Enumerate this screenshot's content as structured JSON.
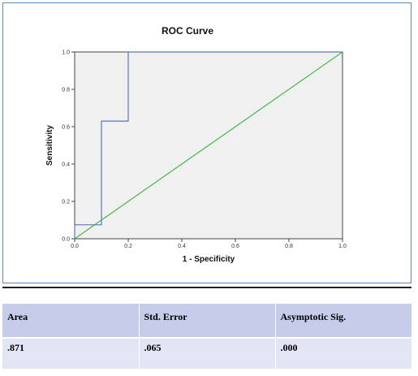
{
  "chart_data": {
    "type": "line",
    "title": "ROC Curve",
    "xlabel": "1 - Specificity",
    "ylabel": "Sensitivity",
    "xlim": [
      0.0,
      1.0
    ],
    "ylim": [
      0.0,
      1.0
    ],
    "xticks": [
      "0.0",
      "0.2",
      "0.4",
      "0.6",
      "0.8",
      "1.0"
    ],
    "yticks": [
      "0.0",
      "0.2",
      "0.4",
      "0.6",
      "0.8",
      "1.0"
    ],
    "grid": false,
    "plot_background": "#f0f0f0",
    "series": [
      {
        "color": "#5a78b8",
        "points": [
          [
            0.0,
            0.0
          ],
          [
            0.0,
            0.075
          ],
          [
            0.1,
            0.075
          ],
          [
            0.1,
            0.63
          ],
          [
            0.2,
            0.63
          ],
          [
            0.2,
            1.0
          ],
          [
            1.0,
            1.0
          ]
        ]
      },
      {
        "color": "#44bb44",
        "points": [
          [
            0.0,
            0.0
          ],
          [
            1.0,
            1.0
          ]
        ]
      }
    ]
  },
  "table": {
    "headers": [
      "Area",
      "Std. Error",
      "Asymptotic Sig."
    ],
    "rows": [
      [
        ".871",
        ".065",
        ".000"
      ]
    ]
  }
}
